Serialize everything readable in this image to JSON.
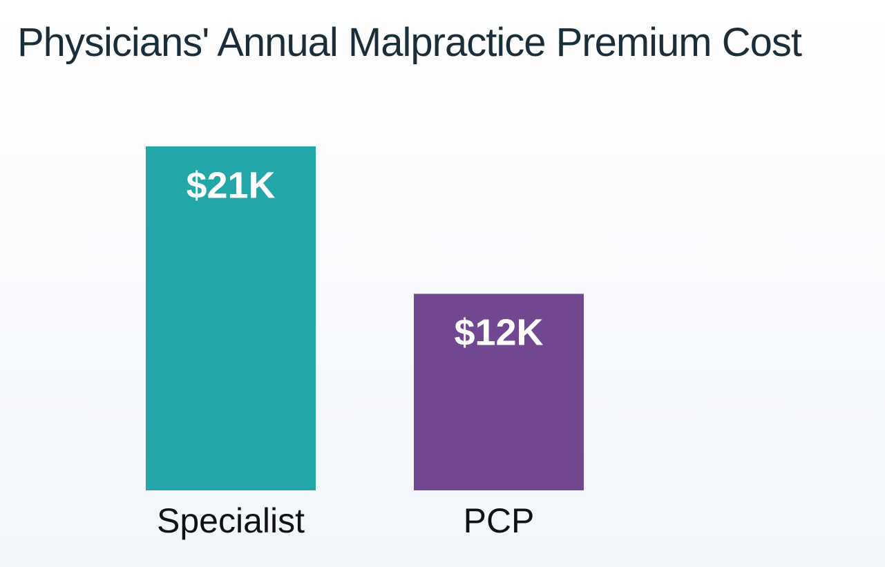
{
  "chart_data": {
    "type": "bar",
    "title": "Physicians' Annual Malpractice Premium Cost",
    "categories": [
      "Specialist",
      "PCP"
    ],
    "values": [
      21,
      12
    ],
    "value_labels": [
      "$21K",
      "$12K"
    ],
    "colors": [
      "#23a6a7",
      "#71488f"
    ]
  }
}
